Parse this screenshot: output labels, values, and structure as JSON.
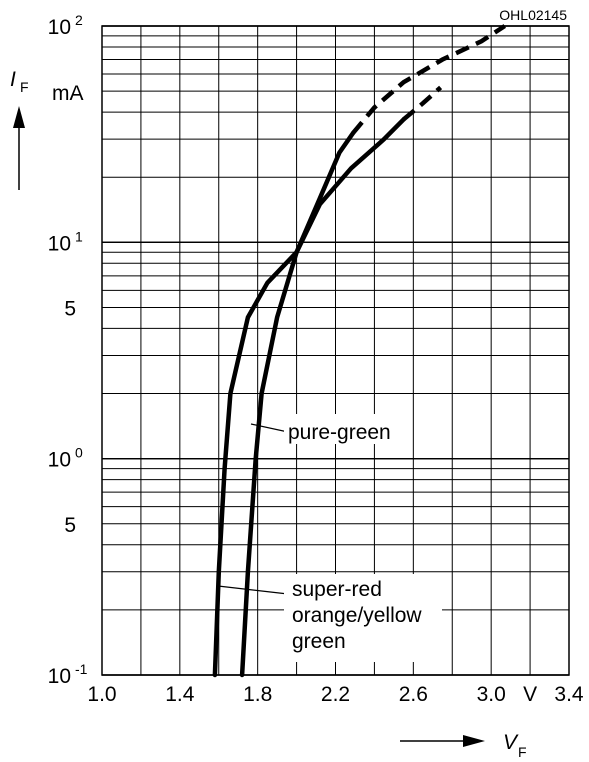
{
  "chart_data": {
    "type": "line",
    "code": "OHL02145",
    "x_axis": {
      "label_main": "V",
      "label_sub": "F",
      "unit": "V",
      "range": [
        1.0,
        3.4
      ],
      "ticks": [
        1.0,
        1.4,
        1.8,
        2.2,
        2.6,
        3.0,
        3.4
      ],
      "tick_labels": [
        "1.0",
        "1.4",
        "1.8",
        "2.2",
        "2.6",
        "3.0",
        "3.4"
      ]
    },
    "y_axis": {
      "label_main": "I",
      "label_sub": "F",
      "unit": "mA",
      "scale": "log",
      "range": [
        0.1,
        100
      ],
      "decade_labels": [
        {
          "value": 100,
          "base": "10",
          "exp": "2"
        },
        {
          "value": 10,
          "base": "10",
          "exp": "1"
        },
        {
          "value": 1,
          "base": "10",
          "exp": "0"
        },
        {
          "value": 0.1,
          "base": "10",
          "exp": "-1"
        }
      ],
      "minor_labels": [
        {
          "value": 5,
          "text": "5"
        },
        {
          "value": 0.5,
          "text": "5"
        }
      ]
    },
    "grid": true,
    "series": [
      {
        "name": "pure-green",
        "points": [
          [
            1.72,
            0.1
          ],
          [
            1.75,
            0.3
          ],
          [
            1.79,
            1.0
          ],
          [
            1.82,
            2.0
          ],
          [
            1.9,
            4.5
          ],
          [
            2.0,
            9.0
          ],
          [
            2.12,
            15.0
          ],
          [
            2.28,
            22.0
          ],
          [
            2.45,
            30.0
          ],
          [
            2.55,
            37.0
          ]
        ],
        "dashed_points": [
          [
            2.55,
            37.0
          ],
          [
            2.65,
            44.0
          ],
          [
            2.74,
            52.0
          ]
        ]
      },
      {
        "name": "super-red orange/yellow green",
        "points": [
          [
            1.58,
            0.1
          ],
          [
            1.6,
            0.3
          ],
          [
            1.63,
            0.9
          ],
          [
            1.66,
            2.0
          ],
          [
            1.75,
            4.5
          ],
          [
            1.85,
            6.5
          ],
          [
            2.0,
            9.0
          ],
          [
            2.12,
            16.0
          ],
          [
            2.22,
            26.0
          ],
          [
            2.29,
            32.0
          ]
        ],
        "dashed_points": [
          [
            2.29,
            32.0
          ],
          [
            2.4,
            42.0
          ],
          [
            2.55,
            55.0
          ],
          [
            2.75,
            70.0
          ],
          [
            2.95,
            85.0
          ],
          [
            3.07,
            100.0
          ]
        ]
      }
    ],
    "annotations": [
      {
        "id": "pure-green",
        "lines": [
          "pure-green"
        ]
      },
      {
        "id": "red-group",
        "lines": [
          "super-red",
          "orange/yellow",
          "green"
        ]
      }
    ]
  }
}
